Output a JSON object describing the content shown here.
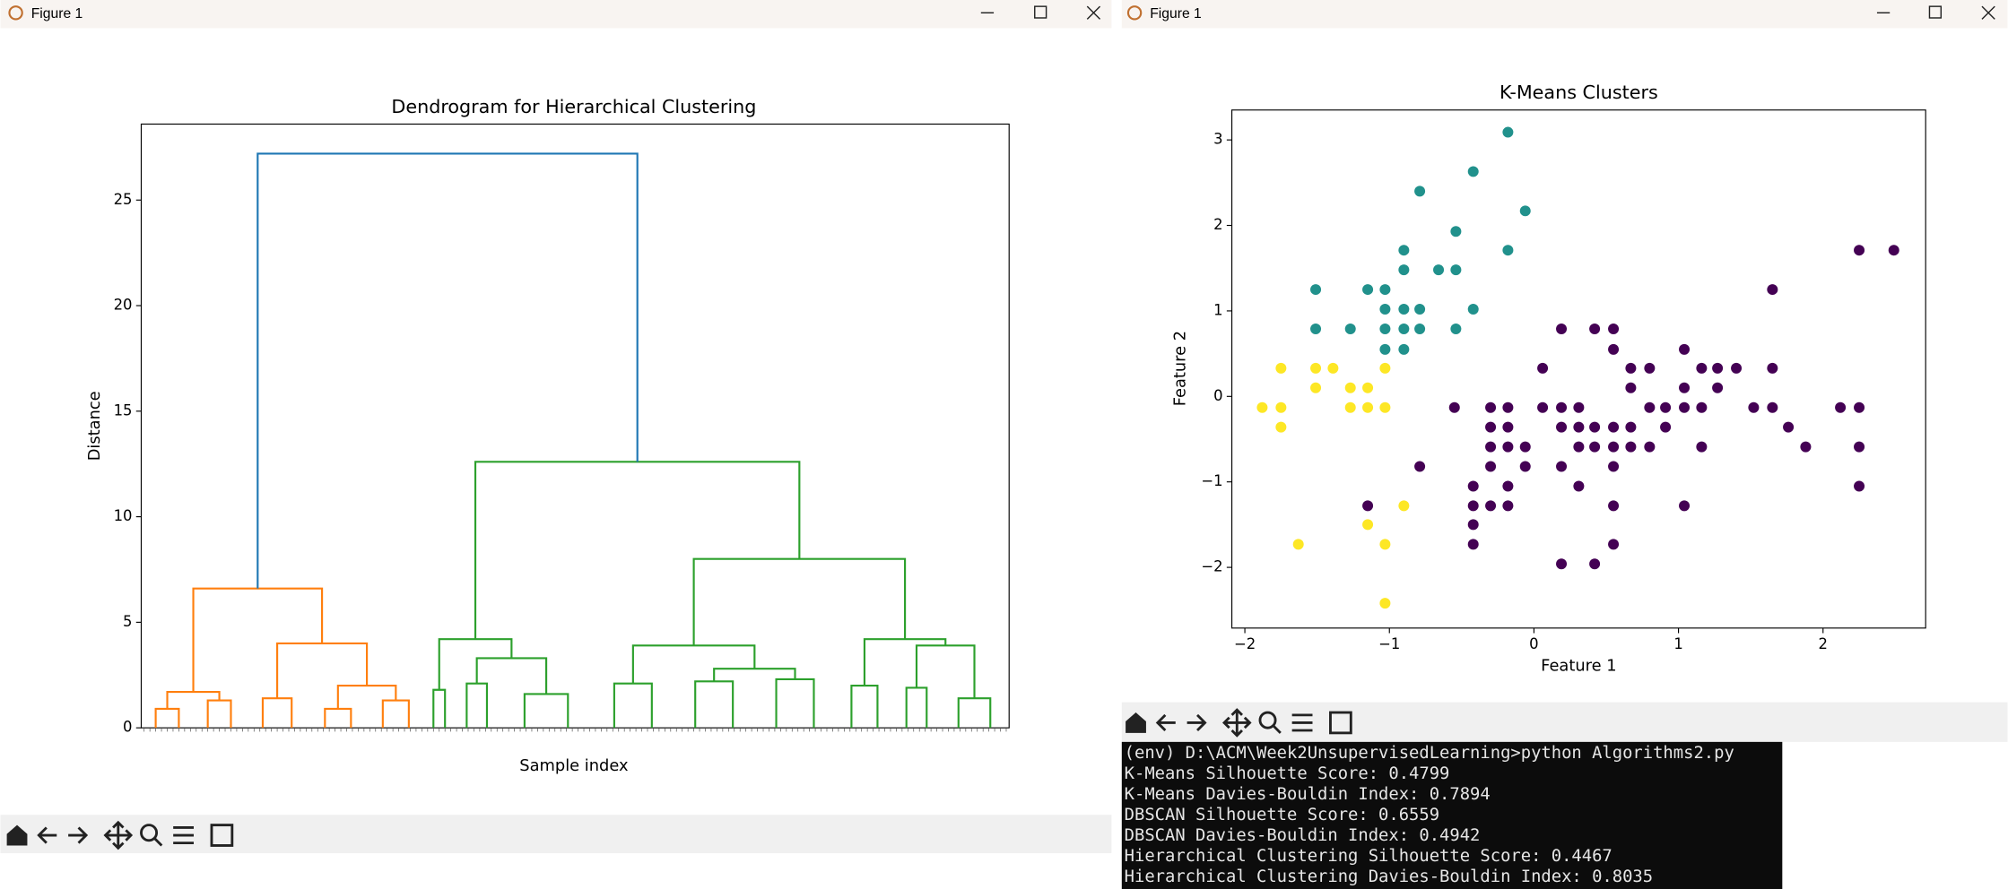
{
  "windows": [
    {
      "title": "Figure 1"
    },
    {
      "title": "Figure 1"
    }
  ],
  "chart_data": [
    {
      "type": "dendrogram",
      "title": "Dendrogram for Hierarchical Clustering",
      "xlabel": "Sample index",
      "ylabel": "Distance",
      "ylim": [
        0,
        28.6
      ],
      "yticks": [
        0,
        5,
        10,
        15,
        20,
        25
      ],
      "link_color": "#1f77b4",
      "tree": {
        "height": 27.2,
        "children": [
          {
            "height": 6.6,
            "color": "#ff7f0e",
            "children": [
              {
                "height": 1.7,
                "children": [
                  {
                    "height": 0.9,
                    "leaves": 9
                  },
                  {
                    "height": 1.3,
                    "leaves": 9
                  }
                ]
              },
              {
                "height": 4.0,
                "children": [
                  {
                    "height": 1.4,
                    "leaves": 11
                  },
                  {
                    "height": 2.0,
                    "children": [
                      {
                        "height": 0.9,
                        "leaves": 10
                      },
                      {
                        "height": 1.3,
                        "leaves": 10
                      }
                    ]
                  }
                ]
              }
            ]
          },
          {
            "height": 12.6,
            "color": "#2ca02c",
            "children": [
              {
                "height": 4.2,
                "children": [
                  {
                    "height": 1.8,
                    "leaves": 5
                  },
                  {
                    "height": 3.3,
                    "children": [
                      {
                        "height": 2.1,
                        "leaves": 8
                      },
                      {
                        "height": 1.6,
                        "leaves": 16
                      }
                    ]
                  }
                ]
              },
              {
                "height": 8.0,
                "children": [
                  {
                    "height": 3.9,
                    "children": [
                      {
                        "height": 2.1,
                        "leaves": 14
                      },
                      {
                        "height": 2.8,
                        "children": [
                          {
                            "height": 2.2,
                            "leaves": 14
                          },
                          {
                            "height": 2.3,
                            "leaves": 14
                          }
                        ]
                      }
                    ]
                  },
                  {
                    "height": 4.2,
                    "children": [
                      {
                        "height": 2.0,
                        "leaves": 10
                      },
                      {
                        "height": 3.9,
                        "children": [
                          {
                            "height": 1.9,
                            "leaves": 8
                          },
                          {
                            "height": 1.4,
                            "leaves": 12
                          }
                        ]
                      }
                    ]
                  }
                ]
              }
            ]
          }
        ]
      }
    },
    {
      "type": "scatter",
      "title": "K-Means Clusters",
      "xlabel": "Feature 1",
      "ylabel": "Feature 2",
      "xlim": [
        -2.09,
        2.71
      ],
      "ylim": [
        -2.71,
        3.35
      ],
      "xticks": [
        {
          "value": -2,
          "label": "−2"
        },
        {
          "value": -1,
          "label": "−1"
        },
        0,
        1,
        2
      ],
      "yticks": [
        {
          "value": -2,
          "label": "−2"
        },
        {
          "value": -1,
          "label": "−1"
        },
        0,
        1,
        2,
        3
      ],
      "series": [
        {
          "color": "#21918c",
          "x": [
            -0.18,
            -0.42,
            -0.79,
            -0.06,
            -0.54,
            -0.9,
            -0.18,
            -0.9,
            -0.66,
            -0.54,
            -1.51,
            -1.15,
            -1.03,
            -1.03,
            -0.9,
            -0.79,
            -0.42,
            -1.51,
            -1.27,
            -1.03,
            -0.9,
            -0.79,
            -0.54,
            -1.03,
            -0.9
          ],
          "values": [
            3.09,
            2.63,
            2.4,
            2.17,
            1.93,
            1.71,
            1.71,
            1.48,
            1.48,
            1.48,
            1.25,
            1.25,
            1.25,
            1.02,
            1.02,
            1.02,
            1.02,
            0.79,
            0.79,
            0.79,
            0.79,
            0.79,
            0.79,
            0.55,
            0.55
          ]
        },
        {
          "color": "#fde725",
          "x": [
            -1.51,
            -1.39,
            -1.75,
            -1.03,
            -1.51,
            -1.27,
            -1.15,
            -1.88,
            -1.75,
            -1.27,
            -1.15,
            -1.03,
            -1.75,
            -0.9,
            -1.15,
            -1.63,
            -1.03,
            -1.03
          ],
          "values": [
            0.33,
            0.33,
            0.33,
            0.33,
            0.1,
            0.1,
            0.1,
            -0.13,
            -0.13,
            -0.13,
            -0.13,
            -0.13,
            -0.36,
            -1.28,
            -1.5,
            -1.73,
            -1.73,
            -2.42
          ]
        },
        {
          "color": "#440154",
          "x": [
            2.25,
            2.49,
            1.65,
            0.19,
            0.42,
            0.55,
            0.55,
            1.04,
            0.06,
            0.67,
            0.8,
            1.16,
            1.27,
            1.4,
            1.65,
            0.67,
            1.04,
            1.27,
            -0.55,
            -0.3,
            -0.18,
            0.06,
            0.19,
            0.31,
            0.8,
            0.91,
            1.04,
            1.16,
            1.52,
            1.65,
            2.12,
            2.25,
            -0.3,
            -0.18,
            0.19,
            0.31,
            0.42,
            0.55,
            0.67,
            0.91,
            1.76,
            -0.3,
            -0.18,
            -0.06,
            0.31,
            0.42,
            0.55,
            0.67,
            0.8,
            1.16,
            1.88,
            2.25,
            -0.79,
            -0.3,
            -0.06,
            0.19,
            0.55,
            -0.42,
            -0.18,
            0.31,
            2.25,
            -1.15,
            -0.42,
            -0.3,
            -0.18,
            0.55,
            1.04,
            -0.42,
            -0.42,
            0.55,
            0.19,
            0.42
          ],
          "values": [
            1.71,
            1.71,
            1.25,
            0.79,
            0.79,
            0.79,
            0.55,
            0.55,
            0.33,
            0.33,
            0.33,
            0.33,
            0.33,
            0.33,
            0.33,
            0.1,
            0.1,
            0.1,
            -0.13,
            -0.13,
            -0.13,
            -0.13,
            -0.13,
            -0.13,
            -0.13,
            -0.13,
            -0.13,
            -0.13,
            -0.13,
            -0.13,
            -0.13,
            -0.13,
            -0.36,
            -0.36,
            -0.36,
            -0.36,
            -0.36,
            -0.36,
            -0.36,
            -0.36,
            -0.36,
            -0.59,
            -0.59,
            -0.59,
            -0.59,
            -0.59,
            -0.59,
            -0.59,
            -0.59,
            -0.59,
            -0.59,
            -0.59,
            -0.82,
            -0.82,
            -0.82,
            -0.82,
            -0.82,
            -1.05,
            -1.05,
            -1.05,
            -1.05,
            -1.28,
            -1.28,
            -1.28,
            -1.28,
            -1.28,
            -1.28,
            -1.5,
            -1.73,
            -1.73,
            -1.96,
            -1.96
          ]
        }
      ]
    }
  ],
  "terminal": {
    "lines": [
      "(env) D:\\ACM\\Week2UnsupervisedLearning>python Algorithms2.py",
      "K-Means Silhouette Score: 0.4799",
      "K-Means Davies-Bouldin Index: 0.7894",
      "DBSCAN Silhouette Score: 0.6559",
      "DBSCAN Davies-Bouldin Index: 0.4942",
      "Hierarchical Clustering Silhouette Score: 0.4467",
      "Hierarchical Clustering Davies-Bouldin Index: 0.8035"
    ]
  }
}
